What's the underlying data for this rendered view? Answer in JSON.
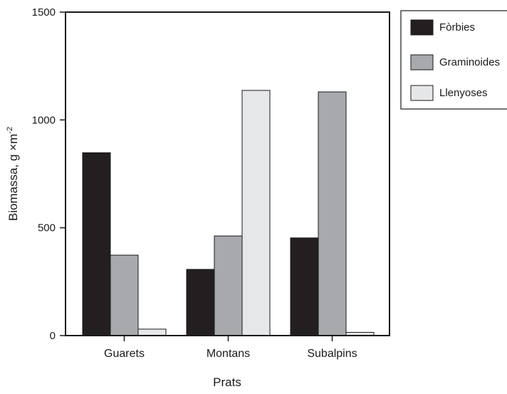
{
  "chart_data": {
    "type": "bar",
    "categories": [
      "Guarets",
      "Montans",
      "Subalpins"
    ],
    "series": [
      {
        "name": "Fòrbies",
        "values": [
          848,
          307,
          453
        ],
        "color": "#231f20"
      },
      {
        "name": "Graminoides",
        "values": [
          373,
          462,
          1130
        ],
        "color": "#a7a9ac"
      },
      {
        "name": "Llenyoses",
        "values": [
          30,
          1137,
          15
        ],
        "color": "#e6e7e8"
      }
    ],
    "title": "",
    "xlabel": "Prats",
    "ylabel_main": "Biomassa, g ×m",
    "ylabel_sup": "-2",
    "ylim": [
      0,
      1500
    ],
    "yticks": [
      0,
      500,
      1000,
      1500
    ],
    "grid": false,
    "legend_position": "outside-right"
  }
}
